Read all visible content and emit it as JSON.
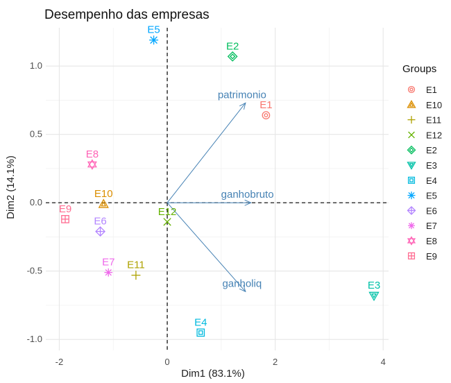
{
  "chart_data": {
    "type": "scatter",
    "title": "Desempenho das empresas",
    "xlabel": "Dim1 (83.1%)",
    "ylabel": "Dim2 (14.1%)",
    "xlim": [
      -2.25,
      4.1
    ],
    "ylim": [
      -1.08,
      1.28
    ],
    "xticks": [
      -2,
      0,
      2,
      4
    ],
    "yticks": [
      -1.0,
      -0.5,
      0.0,
      0.5,
      1.0
    ],
    "xtick_labels": [
      "-2",
      "0",
      "2",
      "4"
    ],
    "ytick_labels": [
      "-1.0",
      "-0.5",
      "0.0",
      "0.5",
      "1.0"
    ],
    "grid": true,
    "legend": {
      "title": "Groups",
      "position": "right"
    },
    "points": [
      {
        "label": "E1",
        "x": 1.83,
        "y": 0.64,
        "color": "#F8766D",
        "shape": "circle-plus"
      },
      {
        "label": "E10",
        "x": -1.18,
        "y": -0.01,
        "color": "#DB8E00",
        "shape": "triangle"
      },
      {
        "label": "E11",
        "x": -0.58,
        "y": -0.53,
        "color": "#AEA200",
        "shape": "plus"
      },
      {
        "label": "E12",
        "x": 0.0,
        "y": -0.14,
        "color": "#64B200",
        "shape": "cross"
      },
      {
        "label": "E2",
        "x": 1.21,
        "y": 1.07,
        "color": "#00BD5C",
        "shape": "diamond"
      },
      {
        "label": "E3",
        "x": 3.83,
        "y": -0.68,
        "color": "#00C1A7",
        "shape": "triangle-down"
      },
      {
        "label": "E4",
        "x": 0.62,
        "y": -0.95,
        "color": "#00BADE",
        "shape": "square"
      },
      {
        "label": "E5",
        "x": -0.25,
        "y": 1.19,
        "color": "#00A6FF",
        "shape": "asterisk"
      },
      {
        "label": "E6",
        "x": -1.24,
        "y": -0.21,
        "color": "#B385FF",
        "shape": "diamond-plus"
      },
      {
        "label": "E7",
        "x": -1.09,
        "y": -0.51,
        "color": "#EF67EB",
        "shape": "star"
      },
      {
        "label": "E8",
        "x": -1.39,
        "y": 0.28,
        "color": "#FF63B6",
        "shape": "hexagram"
      },
      {
        "label": "E9",
        "x": -1.89,
        "y": -0.12,
        "color": "#FF6C91",
        "shape": "square-plus"
      }
    ],
    "variables": [
      {
        "label": "patrimonio",
        "x": 1.45,
        "y": 0.73
      },
      {
        "label": "ganhobruto",
        "x": 1.55,
        "y": 0.0
      },
      {
        "label": "ganholiq",
        "x": 1.45,
        "y": -0.65
      }
    ],
    "legend_order": [
      "E1",
      "E10",
      "E11",
      "E12",
      "E2",
      "E3",
      "E4",
      "E5",
      "E6",
      "E7",
      "E8",
      "E9"
    ],
    "arrow_color": "#4682B4"
  }
}
